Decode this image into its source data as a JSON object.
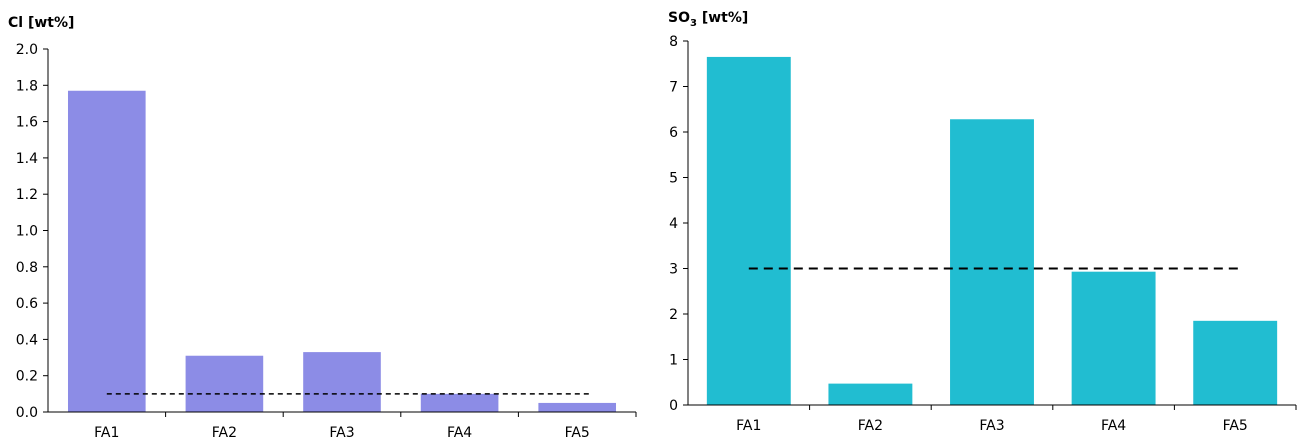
{
  "chart_data": [
    {
      "type": "bar",
      "ylabel": "Cl [wt%]",
      "categories": [
        "FA1",
        "FA2",
        "FA3",
        "FA4",
        "FA5"
      ],
      "values": [
        1.77,
        0.31,
        0.33,
        0.1,
        0.05
      ],
      "ylim": [
        0,
        2.0
      ],
      "yticks": [
        "0.0",
        "0.2",
        "0.4",
        "0.6",
        "0.8",
        "1.0",
        "1.2",
        "1.4",
        "1.6",
        "1.8",
        "2.0"
      ],
      "reference_line": 0.1,
      "bar_color": "#8c8ce6",
      "grid": false
    },
    {
      "type": "bar",
      "ylabel_main": "SO",
      "ylabel_sub": "3",
      "ylabel_unit": " [wt%]",
      "categories": [
        "FA1",
        "FA2",
        "FA3",
        "FA4",
        "FA5"
      ],
      "values": [
        7.65,
        0.47,
        6.28,
        2.93,
        1.85
      ],
      "ylim": [
        0,
        8
      ],
      "yticks": [
        "0",
        "1",
        "2",
        "3",
        "4",
        "5",
        "6",
        "7",
        "8"
      ],
      "reference_line": 3.0,
      "bar_color": "#21bdd1",
      "grid": false
    }
  ]
}
